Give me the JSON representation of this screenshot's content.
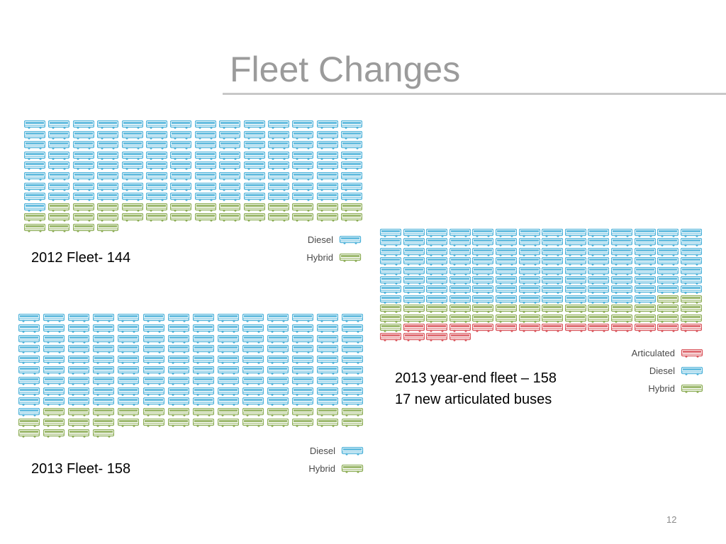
{
  "slide": {
    "title": "Fleet Changes",
    "page_number": "12"
  },
  "colors": {
    "Diesel": "#4bb1d9",
    "Hybrid": "#8cad55",
    "Articulated": "#d9535a",
    "title": "#9b9b9b",
    "rule": "#c8c8c8"
  },
  "chart_data": [
    {
      "type": "table",
      "chart": "pictogram",
      "unit": "bus",
      "caption": "2012 Fleet- 144",
      "total": 144,
      "columns": 14,
      "series": [
        {
          "name": "Diesel",
          "value": 113
        },
        {
          "name": "Hybrid",
          "value": 31
        }
      ],
      "legend": [
        "Diesel",
        "Hybrid"
      ],
      "legend_position": "bottom-right"
    },
    {
      "type": "table",
      "chart": "pictogram",
      "unit": "bus",
      "caption": "2013 Fleet- 158",
      "total": 158,
      "columns": 14,
      "series": [
        {
          "name": "Diesel",
          "value": 127
        },
        {
          "name": "Hybrid",
          "value": 31
        }
      ],
      "legend": [
        "Diesel",
        "Hybrid"
      ],
      "legend_position": "bottom-right"
    },
    {
      "type": "table",
      "chart": "pictogram",
      "unit": "bus",
      "caption": "2013 year-end fleet – 158",
      "caption_line2": "17 new articulated buses",
      "total": 158,
      "columns": 14,
      "series": [
        {
          "name": "Diesel",
          "value": 110
        },
        {
          "name": "Hybrid",
          "value": 31
        },
        {
          "name": "Articulated",
          "value": 17
        }
      ],
      "legend": [
        "Articulated",
        "Diesel",
        "Hybrid"
      ],
      "legend_position": "bottom-right"
    }
  ]
}
